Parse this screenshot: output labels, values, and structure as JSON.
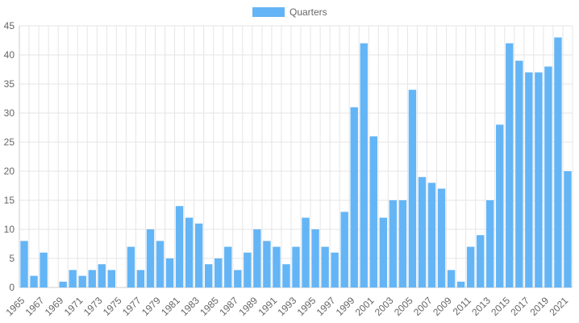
{
  "chart_data": {
    "type": "bar",
    "categories": [
      "1965",
      "1966",
      "1967",
      "1968",
      "1969",
      "1970",
      "1971",
      "1972",
      "1973",
      "1974",
      "1975",
      "1976",
      "1977",
      "1978",
      "1979",
      "1980",
      "1981",
      "1982",
      "1983",
      "1984",
      "1985",
      "1986",
      "1987",
      "1988",
      "1989",
      "1990",
      "1991",
      "1992",
      "1993",
      "1994",
      "1995",
      "1996",
      "1997",
      "1998",
      "1999",
      "2000",
      "2001",
      "2002",
      "2003",
      "2004",
      "2005",
      "2006",
      "2007",
      "2008",
      "2009",
      "2010",
      "2011",
      "2012",
      "2013",
      "2014",
      "2015",
      "2016",
      "2017",
      "2018",
      "2019",
      "2020",
      "2021"
    ],
    "x_tick_labels_shown": [
      "1965",
      "1967",
      "1969",
      "1971",
      "1973",
      "1975",
      "1977",
      "1979",
      "1981",
      "1983",
      "1985",
      "1987",
      "1989",
      "1991",
      "1993",
      "1995",
      "1997",
      "1999",
      "2001",
      "2003",
      "2005",
      "2007",
      "2009",
      "2011",
      "2013",
      "2015",
      "2017",
      "2019",
      "2021"
    ],
    "series": [
      {
        "name": "Quarters",
        "color": "#64b5f6",
        "values": [
          8,
          2,
          6,
          0,
          1,
          3,
          2,
          3,
          4,
          3,
          0,
          7,
          3,
          10,
          8,
          5,
          14,
          12,
          11,
          4,
          5,
          7,
          3,
          6,
          10,
          8,
          7,
          4,
          7,
          12,
          10,
          7,
          6,
          13,
          31,
          42,
          26,
          12,
          15,
          15,
          34,
          19,
          18,
          17,
          3,
          1,
          7,
          9,
          15,
          28,
          42,
          39,
          37,
          37,
          38,
          43,
          20
        ]
      }
    ],
    "ylim": [
      0,
      45
    ],
    "y_ticks": [
      0,
      5,
      10,
      15,
      20,
      25,
      30,
      35,
      40,
      45
    ],
    "grid": true,
    "legend": "top-center",
    "title": "",
    "xlabel": "",
    "ylabel": ""
  }
}
